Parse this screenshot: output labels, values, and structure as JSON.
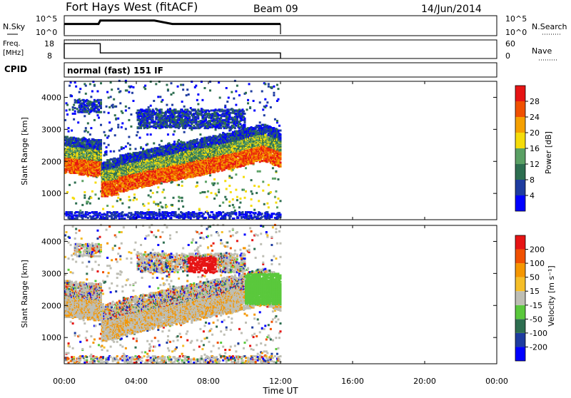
{
  "header": {
    "title": "Fort Hays West (fitACF)",
    "beam": "Beam 09",
    "date": "14/Jun/2014"
  },
  "noise_panel": {
    "left_label": "N.Sky",
    "left_ticks": [
      "10^5",
      "10^0"
    ],
    "right_ticks": [
      "10^5",
      "10^0"
    ],
    "right_label": "N.Search"
  },
  "freq_panel": {
    "left_label_1": "Freq.",
    "left_label_2": "[MHz]",
    "left_ticks": [
      "18",
      "8"
    ],
    "right_ticks": [
      "60",
      "0"
    ],
    "right_label": "Nave"
  },
  "cpid": {
    "label": "CPID",
    "value": "normal (fast) 151 IF"
  },
  "colors": {
    "power": [
      "#0000ff",
      "#1e3ca0",
      "#2d6e50",
      "#5aa064",
      "#f5dc0a",
      "#f5a000",
      "#f05000",
      "#e61414"
    ],
    "velocity": [
      "#e61414",
      "#f05000",
      "#f59600",
      "#f5be28",
      "#bebeb4",
      "#5ac83c",
      "#2d6e50",
      "#1e3ca0",
      "#0000ff"
    ]
  },
  "x_axis": {
    "label": "Time UT",
    "ticks": [
      "00:00",
      "04:00",
      "08:00",
      "12:00",
      "16:00",
      "20:00",
      "00:00"
    ]
  },
  "chart_data": [
    {
      "type": "line",
      "title": "N.Sky / N.Search",
      "x": [
        0,
        1,
        1.9,
        2,
        3,
        4,
        5,
        6,
        7,
        8,
        9,
        10,
        11,
        12
      ],
      "series": [
        {
          "name": "N.Sky",
          "values": [
            3,
            3,
            3,
            4,
            4,
            4,
            4,
            3,
            3,
            3,
            3,
            3,
            3,
            3
          ]
        }
      ],
      "xlim": [
        0,
        24
      ]
    },
    {
      "type": "line",
      "title": "Freq. / Nave",
      "x": [
        0,
        2,
        2,
        12
      ],
      "series": [
        {
          "name": "Freq.",
          "values": [
            16,
            16,
            11,
            11
          ]
        },
        {
          "name": "Nave",
          "values": [
            18,
            18,
            18,
            18
          ]
        }
      ],
      "ylim": [
        8,
        18
      ],
      "xlim": [
        0,
        24
      ]
    },
    {
      "type": "heatmap",
      "title": "Power",
      "ylabel": "Slant Range [km]",
      "y_ticks": [
        1000,
        2000,
        3000,
        4000
      ],
      "ylim": [
        180,
        4500
      ],
      "xlim": [
        0,
        24
      ],
      "colorbar_label": "Power [dB]",
      "colorbar_ticks": [
        4,
        8,
        12,
        16,
        20,
        24,
        28
      ],
      "colorbar_range": [
        0,
        32
      ]
    },
    {
      "type": "heatmap",
      "title": "Velocity",
      "ylabel": "Slant Range [km]",
      "y_ticks": [
        1000,
        2000,
        3000,
        4000
      ],
      "ylim": [
        180,
        4500
      ],
      "xlim": [
        0,
        24
      ],
      "colorbar_label": "Velocity [m s⁻¹]",
      "colorbar_ticks": [
        200,
        100,
        50,
        15,
        -15,
        -50,
        -100,
        -200
      ]
    }
  ]
}
